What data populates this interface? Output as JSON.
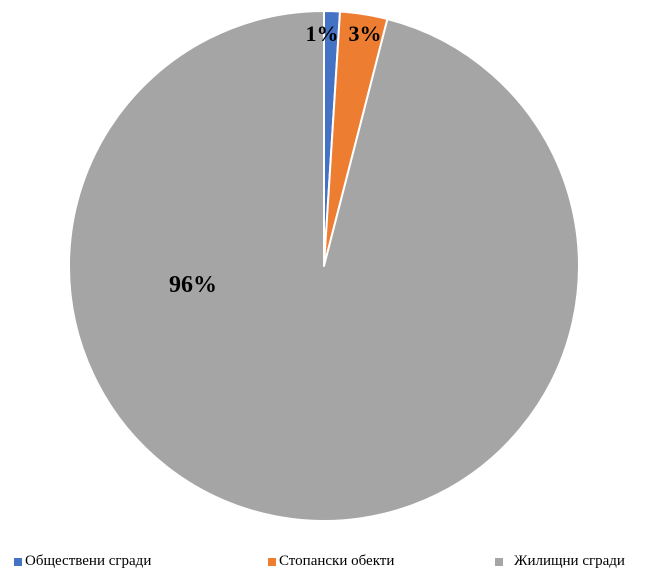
{
  "chart_data": {
    "type": "pie",
    "start_angle_deg": 0,
    "direction": "clockwise",
    "slices": [
      {
        "label": "Обществени сгради",
        "value": 1,
        "display": "1%",
        "color": "#4472C4"
      },
      {
        "label": "Стопански обекти",
        "value": 3,
        "display": "3%",
        "color": "#ED7D31"
      },
      {
        "label": "Жилищни сгради",
        "value": 96,
        "display": "96%",
        "color": "#A5A5A5"
      }
    ],
    "legend_position": "bottom",
    "slice_border_color": "#FFFFFF"
  }
}
